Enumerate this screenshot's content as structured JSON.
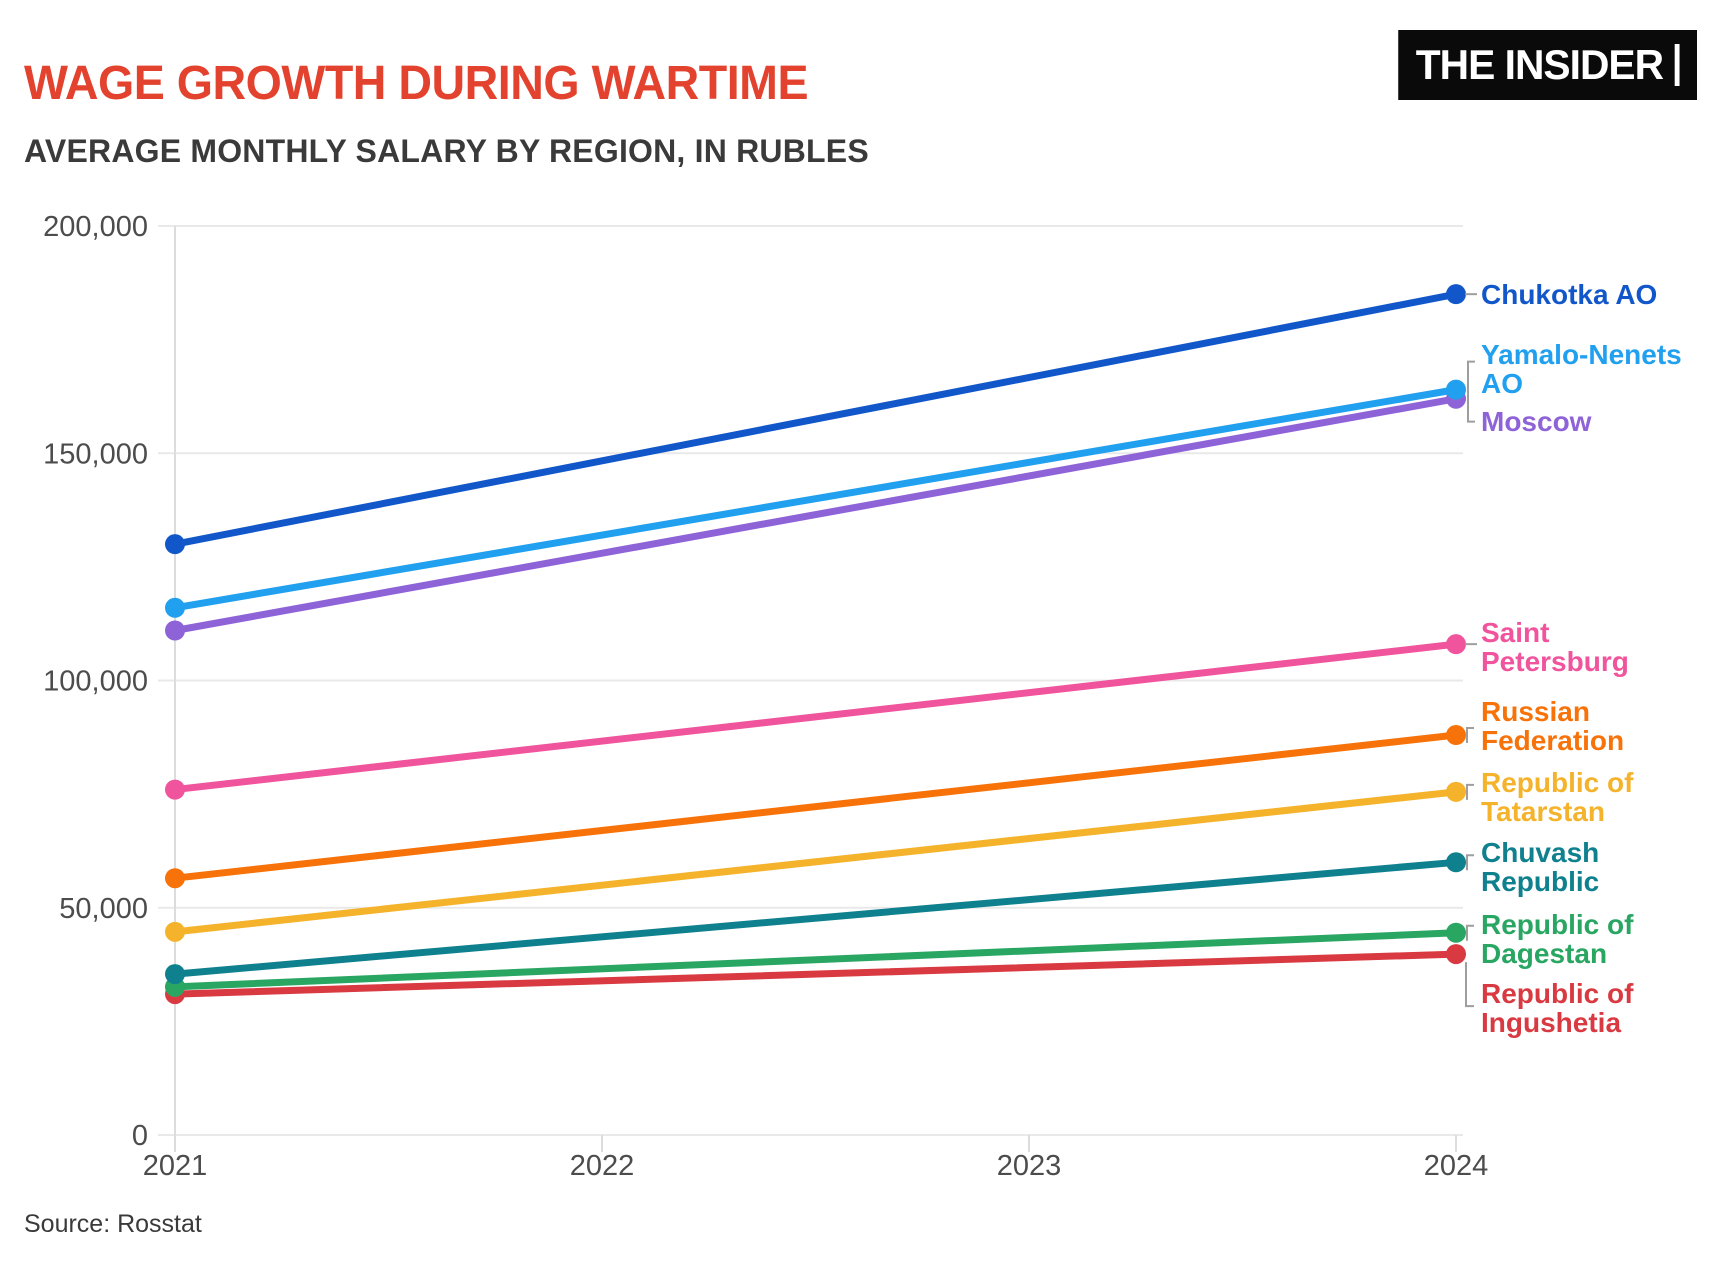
{
  "header": {
    "title": "WAGE GROWTH DURING WARTIME",
    "subtitle": "AVERAGE MONTHLY SALARY BY REGION, IN RUBLES",
    "logo_text": "THE INSIDER"
  },
  "footer": {
    "source": "Source: Rosstat"
  },
  "colors": {
    "title": "#e3432e",
    "subtitle": "#3a3a3a",
    "axis_text": "#4c4c4c",
    "gridline": "#e9e9e9",
    "axis_line": "#dcdcdc",
    "connector": "#9e9e9e",
    "logo_bg": "#0a0a0a",
    "logo_text": "#ffffff",
    "source_text": "#3a3a3a",
    "background": "#ffffff"
  },
  "chart_data": {
    "type": "line",
    "title": "WAGE GROWTH DURING WARTIME",
    "subtitle": "AVERAGE MONTHLY SALARY BY REGION, IN RUBLES",
    "unit": "rubles per month",
    "x": [
      2021,
      2024
    ],
    "x_axis_ticks": [
      "2021",
      "2022",
      "2023",
      "2024"
    ],
    "y_axis_ticks": [
      {
        "value": 0,
        "label": "0"
      },
      {
        "value": 50000,
        "label": "50,000"
      },
      {
        "value": 100000,
        "label": "100,000"
      },
      {
        "value": 150000,
        "label": "150,000"
      },
      {
        "value": 200000,
        "label": "200,000"
      }
    ],
    "ylim": [
      0,
      200000
    ],
    "grid": "horizontal",
    "legend": "direct-labels-at-line-ends",
    "series": [
      {
        "name": "Chukotka AO",
        "color": "#1257c9",
        "values": [
          130000,
          185000
        ],
        "label_lines": [
          "Chukotka AO"
        ],
        "label_dy": -14,
        "connector": "tick"
      },
      {
        "name": "Yamalo-Nenets AO",
        "color": "#21a0ef",
        "values": [
          116000,
          164000
        ],
        "label_lines": [
          "Yamalo-Nenets",
          "AO"
        ],
        "label_dy": -50,
        "connector": "pair"
      },
      {
        "name": "Moscow",
        "color": "#8f63d8",
        "values": [
          111000,
          162000
        ],
        "label_lines": [
          "Moscow"
        ],
        "label_dy": 8,
        "connector": "none"
      },
      {
        "name": "Saint Petersburg",
        "color": "#ef549c",
        "values": [
          76000,
          108000
        ],
        "label_lines": [
          "Saint",
          "Petersburg"
        ],
        "label_dy": -26,
        "connector": "tick"
      },
      {
        "name": "Russian Federation",
        "color": "#f7730a",
        "values": [
          56500,
          88000
        ],
        "label_lines": [
          "Russian",
          "Federation"
        ],
        "label_dy": -38,
        "connector": "hook"
      },
      {
        "name": "Republic of Tatarstan",
        "color": "#f4b32b",
        "values": [
          44700,
          75500
        ],
        "label_lines": [
          "Republic of",
          "Tatarstan"
        ],
        "label_dy": -24,
        "connector": "hook"
      },
      {
        "name": "Chuvash Republic",
        "color": "#0f808e",
        "values": [
          35400,
          60000
        ],
        "label_lines": [
          "Chuvash",
          "Republic"
        ],
        "label_dy": -24,
        "connector": "hook"
      },
      {
        "name": "Republic of Dagestan",
        "color": "#2aa663",
        "values": [
          32600,
          44500
        ],
        "label_lines": [
          "Republic of",
          "Dagestan"
        ],
        "label_dy": -23,
        "connector": "hook"
      },
      {
        "name": "Republic of Ingushetia",
        "color": "#d93a41",
        "values": [
          31000,
          39800
        ],
        "label_lines": [
          "Republic of",
          "Ingushetia"
        ],
        "label_dy": 25,
        "connector": "drop"
      }
    ]
  }
}
